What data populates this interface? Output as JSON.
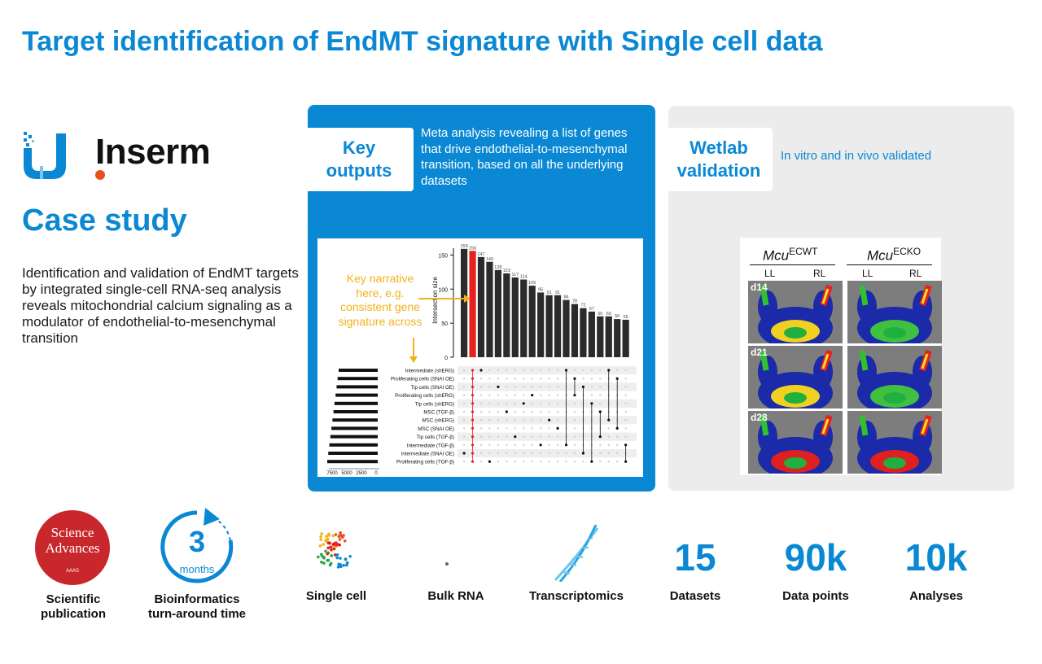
{
  "title": "Target identification of EndMT signature with Single cell data",
  "logo": {
    "wordmark": "Inserm"
  },
  "case_study": {
    "heading": "Case study",
    "description": "Identification and validation of EndMT targets by integrated single-cell RNA-seq analysis reveals mitochondrial calcium signaling as a modulator of endothelial-to-mesenchymal transition"
  },
  "key_outputs": {
    "tag_line1": "Key",
    "tag_line2": "outputs",
    "description": "Meta analysis revealing a list of genes that drive endothelial-to-mesenchymal transition, based on all the underlying datasets",
    "narrative": "Key narrative here, e.g. consistent gene signature across"
  },
  "chart_data": {
    "type": "bar",
    "ylabel": "Intersection size",
    "ylim": [
      0,
      160
    ],
    "yticks": [
      0,
      50,
      100,
      150
    ],
    "values": [
      159,
      156,
      147,
      140,
      128,
      123,
      117,
      114,
      105,
      95,
      91,
      91,
      84,
      78,
      72,
      67,
      60,
      60,
      56,
      55
    ],
    "highlight_index": 1,
    "highlight_color": "#e8201f",
    "bar_color": "#2b2b2b",
    "set_labels": [
      "Intermediate (shERG)",
      "Proliferating cells (SNAI OE)",
      "Tip cells (SNAI OE)",
      "Proliferating cells (shERG)",
      "Tip cells (shERG)",
      "MSC (TGF-β)",
      "MSC (shERG)",
      "MSC (SNAI OE)",
      "Tip cells (TGF-β)",
      "Intermediate (TGF-β)",
      "Intermediate (SNAI OE)",
      "Proliferating cells (TGF-β)"
    ],
    "set_size_ticks": [
      "7500",
      "5000",
      "2500",
      "0"
    ]
  },
  "wetlab": {
    "tag_line1": "Wetlab",
    "tag_line2": "validation",
    "description": "In vitro and in vivo validated",
    "col1_gene": "Mcu",
    "col1_sup": "ECWT",
    "col2_gene": "Mcu",
    "col2_sup": "ECKO",
    "sub_ll": "LL",
    "sub_rl": "RL",
    "rows": [
      "d14",
      "d21",
      "d28"
    ]
  },
  "stats": {
    "publication": {
      "logo_line1": "Science",
      "logo_line2": "Advances",
      "logo_small": "AAAS",
      "label_line1": "Scientific",
      "label_line2": "publication"
    },
    "turnaround": {
      "number": "3",
      "unit": "months",
      "label_line1": "Bioinformatics",
      "label_line2": "turn-around time"
    },
    "single_cell": "Single cell",
    "bulk_rna": "Bulk RNA",
    "transcriptomics": "Transcriptomics",
    "datasets": {
      "value": "15",
      "label": "Datasets"
    },
    "data_points": {
      "value": "90k",
      "label": "Data points"
    },
    "analyses": {
      "value": "10k",
      "label": "Analyses"
    }
  }
}
